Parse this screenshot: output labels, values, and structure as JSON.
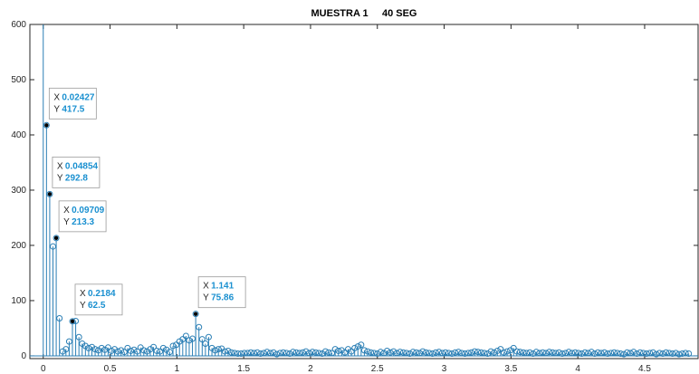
{
  "chart_data": {
    "type": "stem",
    "title": "MUESTRA 1     40 SEG",
    "xlabel": "",
    "ylabel": "",
    "xlim": [
      -0.1,
      4.9
    ],
    "ylim": [
      -5,
      600
    ],
    "xticks": [
      "0",
      "0.5",
      "1",
      "1.5",
      "2",
      "2.5",
      "3",
      "3.5",
      "4",
      "4.5"
    ],
    "yticks": [
      "0",
      "100",
      "200",
      "300",
      "400",
      "500",
      "600"
    ],
    "grid": false,
    "color": "#2b7fb5",
    "x": [
      0,
      0.02427,
      0.04854,
      0.07281,
      0.09709,
      0.12136,
      0.14563,
      0.1699,
      0.19417,
      0.21844,
      0.24271,
      0.26698,
      0.29126,
      0.31553,
      0.3398,
      0.36407,
      0.38834,
      0.41261,
      0.43688,
      0.46115,
      0.48543,
      0.5097,
      0.53397,
      0.55824,
      0.58251,
      0.60678,
      0.63105,
      0.65533,
      0.6796,
      0.70387,
      0.72814,
      0.75241,
      0.77668,
      0.80095,
      0.82522,
      0.8495,
      0.87377,
      0.89804,
      0.92231,
      0.94658,
      0.97085,
      0.99512,
      1.0194,
      1.04367,
      1.06794,
      1.09221,
      1.11648,
      1.14075,
      1.16502,
      1.18929,
      1.21357,
      1.23784,
      1.26211,
      1.28638,
      1.31065,
      1.33492,
      1.35919,
      1.38347,
      1.40774,
      1.43201,
      1.45628,
      1.48055,
      1.50482,
      1.52909,
      1.55336,
      1.57764,
      1.60191,
      1.62618,
      1.65045,
      1.67472,
      1.69899,
      1.72326,
      1.74753,
      1.77181,
      1.79608,
      1.82035,
      1.84462,
      1.86889,
      1.89316,
      1.91743,
      1.94171,
      1.96598,
      1.99025,
      2.01452,
      2.03879,
      2.06306,
      2.08733,
      2.1116,
      2.13588,
      2.16015,
      2.18442,
      2.20869,
      2.23296,
      2.25723,
      2.2815,
      2.30578,
      2.33005,
      2.35432,
      2.37859,
      2.40286,
      2.42713,
      2.4514,
      2.47567,
      2.49995,
      2.52422,
      2.54849,
      2.57276,
      2.59703,
      2.6213,
      2.64557,
      2.66985,
      2.69412,
      2.71839,
      2.74266,
      2.76693,
      2.7912,
      2.81547,
      2.83974,
      2.86402,
      2.88829,
      2.91256,
      2.93683,
      2.9611,
      2.98537,
      3.00964,
      3.03392,
      3.05819,
      3.08246,
      3.10673,
      3.131,
      3.15527,
      3.17954,
      3.20381,
      3.22809,
      3.25236,
      3.27663,
      3.3009,
      3.32517,
      3.34944,
      3.37371,
      3.39799,
      3.42226,
      3.44653,
      3.4708,
      3.49507,
      3.51934,
      3.54361,
      3.56788,
      3.59216,
      3.61643,
      3.6407,
      3.66497,
      3.68924,
      3.71351,
      3.73778,
      3.76206,
      3.78633,
      3.8106,
      3.83487,
      3.85914,
      3.88341,
      3.90768,
      3.93195,
      3.95623,
      3.9805,
      4.00477,
      4.02904,
      4.05331,
      4.07758,
      4.10185,
      4.12613,
      4.1504,
      4.17467,
      4.19894,
      4.22321,
      4.24748,
      4.27175,
      4.29602,
      4.3203,
      4.34457,
      4.36884,
      4.39311,
      4.41738,
      4.44165,
      4.46592,
      4.4902,
      4.51447,
      4.53874,
      4.56301,
      4.58728,
      4.61155,
      4.63582,
      4.66009,
      4.68437,
      4.70864,
      4.73291,
      4.75718,
      4.78145,
      4.80572,
      4.82999
    ],
    "y": [
      610,
      417.5,
      292.8,
      198,
      213.3,
      68,
      8,
      12,
      26,
      62.5,
      63,
      34,
      22,
      18,
      14,
      16,
      12,
      10,
      14,
      11,
      15,
      9,
      12,
      8,
      10,
      7,
      14,
      9,
      11,
      8,
      15,
      10,
      8,
      12,
      16,
      9,
      8,
      14,
      11,
      7,
      18,
      20,
      26,
      30,
      36,
      28,
      31,
      75.86,
      52,
      30,
      22,
      34,
      14,
      10,
      12,
      13,
      8,
      9,
      6,
      5,
      4,
      4,
      5,
      5,
      6,
      5,
      6,
      4,
      5,
      7,
      5,
      6,
      3,
      5,
      6,
      5,
      4,
      7,
      6,
      5,
      6,
      8,
      5,
      7,
      6,
      5,
      4,
      8,
      6,
      5,
      12,
      9,
      10,
      6,
      12,
      8,
      14,
      17,
      20,
      10,
      8,
      6,
      5,
      4,
      7,
      5,
      9,
      6,
      8,
      5,
      7,
      6,
      5,
      4,
      7,
      6,
      5,
      8,
      6,
      5,
      4,
      6,
      7,
      5,
      6,
      5,
      4,
      6,
      7,
      5,
      4,
      5,
      6,
      8,
      7,
      6,
      5,
      4,
      8,
      6,
      9,
      12,
      6,
      8,
      10,
      14,
      8,
      7,
      6,
      5,
      6,
      4,
      7,
      5,
      6,
      5,
      7,
      6,
      5,
      6,
      4,
      5,
      7,
      5,
      6,
      5,
      4,
      6,
      5,
      7,
      4,
      6,
      5,
      6,
      4,
      5,
      6,
      5,
      4,
      3,
      6,
      5,
      7,
      4,
      6,
      5,
      4,
      5,
      6,
      3,
      5,
      4,
      6,
      5,
      4,
      5,
      3,
      4,
      5,
      4
    ]
  },
  "datatips": [
    {
      "x_label": "X",
      "x_value": "0.02427",
      "y_label": "Y",
      "y_value": "417.5",
      "x": 0.02427,
      "y": 417.5
    },
    {
      "x_label": "X",
      "x_value": "0.04854",
      "y_label": "Y",
      "y_value": "292.8",
      "x": 0.04854,
      "y": 292.8
    },
    {
      "x_label": "X",
      "x_value": "0.09709",
      "y_label": "Y",
      "y_value": "213.3",
      "x": 0.09709,
      "y": 213.3
    },
    {
      "x_label": "X",
      "x_value": "0.2184",
      "y_label": "Y",
      "y_value": "62.5",
      "x": 0.21844,
      "y": 62.5
    },
    {
      "x_label": "X",
      "x_value": "1.141",
      "y_label": "Y",
      "y_value": "75.86",
      "x": 1.14075,
      "y": 75.86
    }
  ]
}
